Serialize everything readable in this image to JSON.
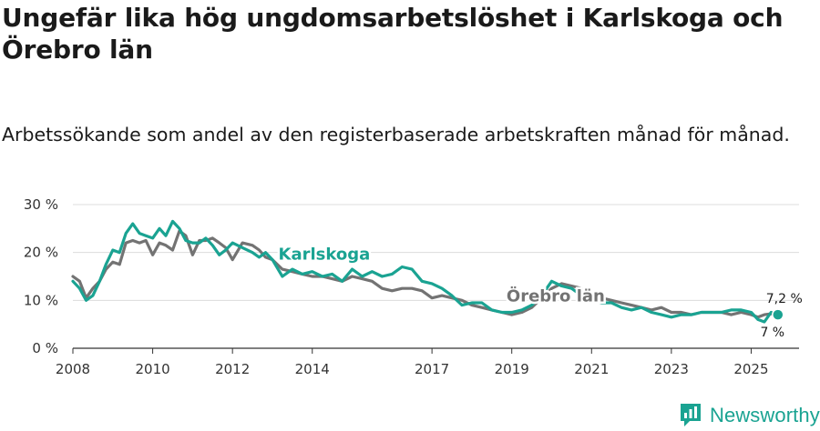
{
  "header": {
    "title": "Ungefär lika hög ungdomsarbetslöshet i Karlskoga och Örebro län",
    "subtitle": "Arbetssökande som andel av den registerbaserade arbetskraften månad för månad."
  },
  "brand": {
    "name": "Newsworthy",
    "icon": "newsworthy-logo-icon",
    "color": "#1aa392"
  },
  "chart_data": {
    "type": "line",
    "title": "Ungefär lika hög ungdomsarbetslöshet i Karlskoga och Örebro län",
    "subtitle": "Arbetssökande som andel av den registerbaserade arbetskraften månad för månad.",
    "xlabel": "",
    "ylabel": "",
    "xlim": [
      2008,
      2026.2
    ],
    "ylim": [
      0,
      30
    ],
    "x_ticks": [
      2008,
      2010,
      2012,
      2014,
      2017,
      2019,
      2021,
      2023,
      2025
    ],
    "x_tick_labels": [
      "2008",
      "2010",
      "2012",
      "2014",
      "2017",
      "2019",
      "2021",
      "2023",
      "2025"
    ],
    "y_ticks": [
      0,
      10,
      20,
      30
    ],
    "y_tick_labels": [
      "0 %",
      "10 %",
      "20 %",
      "30 %"
    ],
    "grid": true,
    "series": [
      {
        "name": "Örebro län",
        "color": "#737373",
        "end_label": "7,2 %",
        "x": [
          2008.0,
          2008.17,
          2008.33,
          2008.5,
          2008.67,
          2008.83,
          2009.0,
          2009.17,
          2009.33,
          2009.5,
          2009.67,
          2009.83,
          2010.0,
          2010.17,
          2010.33,
          2010.5,
          2010.67,
          2010.83,
          2011.0,
          2011.17,
          2011.33,
          2011.5,
          2011.67,
          2011.83,
          2012.0,
          2012.25,
          2012.5,
          2012.67,
          2012.83,
          2013.0,
          2013.25,
          2013.5,
          2013.75,
          2014.0,
          2014.25,
          2014.5,
          2014.75,
          2015.0,
          2015.25,
          2015.5,
          2015.75,
          2016.0,
          2016.25,
          2016.5,
          2016.75,
          2017.0,
          2017.25,
          2017.5,
          2017.75,
          2018.0,
          2018.25,
          2018.5,
          2018.75,
          2019.0,
          2019.25,
          2019.5,
          2019.75,
          2020.0,
          2020.25,
          2020.5,
          2020.75,
          2021.0,
          2021.25,
          2021.5,
          2021.75,
          2022.0,
          2022.25,
          2022.5,
          2022.75,
          2023.0,
          2023.25,
          2023.5,
          2023.75,
          2024.0,
          2024.25,
          2024.5,
          2024.75,
          2025.0,
          2025.17,
          2025.33,
          2025.5,
          2025.67
        ],
        "values": [
          15.0,
          14.0,
          10.5,
          12.5,
          14.0,
          16.5,
          18.0,
          17.5,
          22.0,
          22.5,
          22.0,
          22.5,
          19.5,
          22.0,
          21.5,
          20.5,
          24.5,
          23.5,
          19.5,
          22.5,
          22.5,
          23.0,
          22.0,
          21.0,
          18.5,
          22.0,
          21.5,
          20.5,
          19.0,
          18.5,
          16.5,
          16.0,
          15.5,
          15.0,
          15.0,
          14.5,
          14.0,
          15.0,
          14.5,
          14.0,
          12.5,
          12.0,
          12.5,
          12.5,
          12.0,
          10.5,
          11.0,
          10.5,
          10.0,
          9.0,
          8.5,
          8.0,
          7.5,
          7.0,
          7.5,
          8.5,
          10.5,
          12.5,
          13.5,
          13.0,
          12.5,
          11.5,
          10.5,
          10.0,
          9.5,
          9.0,
          8.5,
          8.0,
          8.5,
          7.5,
          7.5,
          7.0,
          7.5,
          7.5,
          7.5,
          7.0,
          7.5,
          7.0,
          6.5,
          7.0,
          7.2,
          7.2
        ]
      },
      {
        "name": "Karlskoga",
        "color": "#1aa392",
        "end_label": "7 %",
        "x": [
          2008.0,
          2008.17,
          2008.33,
          2008.5,
          2008.67,
          2008.83,
          2009.0,
          2009.17,
          2009.33,
          2009.5,
          2009.67,
          2009.83,
          2010.0,
          2010.17,
          2010.33,
          2010.5,
          2010.67,
          2010.83,
          2011.0,
          2011.17,
          2011.33,
          2011.5,
          2011.67,
          2011.83,
          2012.0,
          2012.25,
          2012.5,
          2012.67,
          2012.83,
          2013.0,
          2013.25,
          2013.5,
          2013.75,
          2014.0,
          2014.25,
          2014.5,
          2014.75,
          2015.0,
          2015.25,
          2015.5,
          2015.75,
          2016.0,
          2016.25,
          2016.5,
          2016.75,
          2017.0,
          2017.25,
          2017.5,
          2017.75,
          2018.0,
          2018.25,
          2018.5,
          2018.75,
          2019.0,
          2019.25,
          2019.5,
          2019.75,
          2020.0,
          2020.25,
          2020.5,
          2020.75,
          2021.0,
          2021.25,
          2021.5,
          2021.75,
          2022.0,
          2022.25,
          2022.5,
          2022.75,
          2023.0,
          2023.25,
          2023.5,
          2023.75,
          2024.0,
          2024.25,
          2024.5,
          2024.75,
          2025.0,
          2025.17,
          2025.33,
          2025.5,
          2025.67
        ],
        "values": [
          14.0,
          12.5,
          10.0,
          11.0,
          14.0,
          17.5,
          20.5,
          20.0,
          24.0,
          26.0,
          24.0,
          23.5,
          23.0,
          25.0,
          23.5,
          26.5,
          25.0,
          22.5,
          22.0,
          22.0,
          23.0,
          21.5,
          19.5,
          20.5,
          22.0,
          21.0,
          20.0,
          19.0,
          20.0,
          18.5,
          15.0,
          16.5,
          15.5,
          16.0,
          15.0,
          15.5,
          14.0,
          16.5,
          15.0,
          16.0,
          15.0,
          15.5,
          17.0,
          16.5,
          14.0,
          13.5,
          12.5,
          11.0,
          9.0,
          9.5,
          9.5,
          8.0,
          7.5,
          7.5,
          8.0,
          9.0,
          11.0,
          14.0,
          13.0,
          12.5,
          11.0,
          10.0,
          9.5,
          9.5,
          8.5,
          8.0,
          8.5,
          7.5,
          7.0,
          6.5,
          7.0,
          7.0,
          7.5,
          7.5,
          7.5,
          8.0,
          8.0,
          7.5,
          6.0,
          5.5,
          7.5,
          7.0
        ]
      }
    ],
    "annotations": [
      {
        "text": "Karlskoga",
        "series": "Karlskoga",
        "x": 2014.3,
        "y": 18.5
      },
      {
        "text": "Örebro län",
        "series": "Örebro län",
        "x": 2020.1,
        "y": 9.8
      }
    ]
  }
}
